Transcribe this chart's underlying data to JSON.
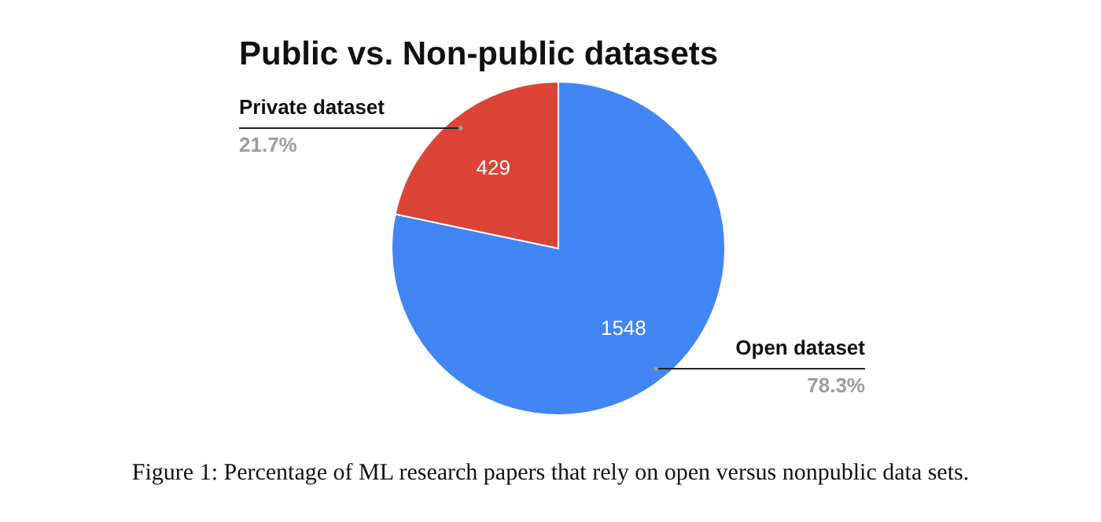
{
  "chart_data": {
    "type": "pie",
    "title": "Public vs. Non-public datasets",
    "categories": [
      "Open dataset",
      "Private dataset"
    ],
    "values": [
      1548,
      429
    ],
    "colors": [
      "#4285f4",
      "#db4437"
    ],
    "value_labels": [
      "1548",
      "429"
    ],
    "annotations": [
      {
        "text": "78.3%",
        "x": "Open dataset"
      },
      {
        "text": "21.7%",
        "x": "Private dataset"
      },
      "Figure 1: Percentage of ML research papers that rely on open versus nonpublic data sets."
    ]
  }
}
